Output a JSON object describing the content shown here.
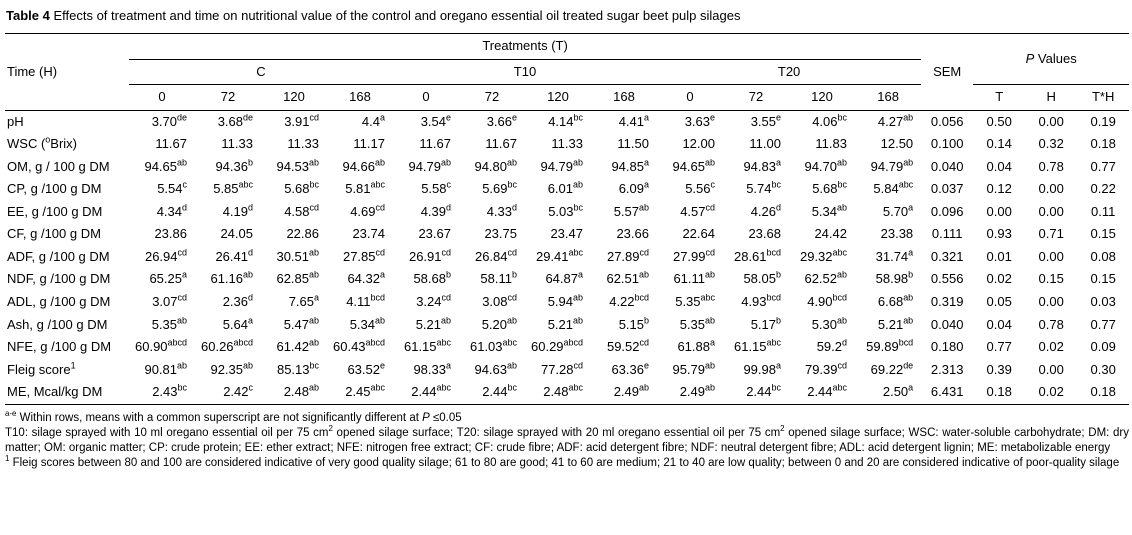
{
  "title": {
    "label": "Table 4",
    "text": " Effects of treatment and time on nutritional value of the control and oregano essential oil treated sugar beet pulp silages"
  },
  "header": {
    "treatments": "Treatments (T)",
    "time_h": "Time (H)",
    "groups": [
      "C",
      "T10",
      "T20"
    ],
    "times": [
      "0",
      "72",
      "120",
      "168"
    ],
    "sem": "SEM",
    "p_values": "*P* Values",
    "p_cols": [
      "T",
      "H",
      "T*H"
    ]
  },
  "rows": [
    {
      "label": "pH",
      "values": [
        "3.70^{de}",
        "3.68^{de}",
        "3.91^{cd}",
        "4.4^{a}",
        "3.54^{e}",
        "3.66^{e}",
        "4.14^{bc}",
        "4.41^{a}",
        "3.63^{e}",
        "3.55^{e}",
        "4.06^{bc}",
        "4.27^{ab}"
      ],
      "sem": "0.056",
      "p": [
        "0.50",
        "0.00",
        "0.19"
      ]
    },
    {
      "label": "WSC (^{o}Brix)",
      "values": [
        "11.67",
        "11.33",
        "11.33",
        "11.17",
        "11.67",
        "11.67",
        "11.33",
        "11.50",
        "12.00",
        "11.00",
        "11.83",
        "12.50"
      ],
      "sem": "0.100",
      "p": [
        "0.14",
        "0.32",
        "0.18"
      ]
    },
    {
      "label": "OM, g / 100 g DM",
      "values": [
        "94.65^{ab}",
        "94.36^{b}",
        "94.53^{ab}",
        "94.66^{ab}",
        "94.79^{ab}",
        "94.80^{ab}",
        "94.79^{ab}",
        "94.85^{a}",
        "94.65^{ab}",
        "94.83^{a}",
        "94.70^{ab}",
        "94.79^{ab}"
      ],
      "sem": "0.040",
      "p": [
        "0.04",
        "0.78",
        "0.77"
      ]
    },
    {
      "label": "CP, g /100 g DM",
      "values": [
        "5.54^{c}",
        "5.85^{abc}",
        "5.68^{bc}",
        "5.81^{abc}",
        "5.58^{c}",
        "5.69^{bc}",
        "6.01^{ab}",
        "6.09^{a}",
        "5.56^{c}",
        "5.74^{bc}",
        "5.68^{bc}",
        "5.84^{abc}"
      ],
      "sem": "0.037",
      "p": [
        "0.12",
        "0.00",
        "0.22"
      ]
    },
    {
      "label": "EE, g /100 g DM",
      "values": [
        "4.34^{d}",
        "4.19^{d}",
        "4.58^{cd}",
        "4.69^{cd}",
        "4.39^{d}",
        "4.33^{d}",
        "5.03^{bc}",
        "5.57^{ab}",
        "4.57^{cd}",
        "4.26^{d}",
        "5.34^{ab}",
        "5.70^{a}"
      ],
      "sem": "0.096",
      "p": [
        "0.00",
        "0.00",
        "0.11"
      ]
    },
    {
      "label": "CF, g /100 g DM",
      "values": [
        "23.86",
        "24.05",
        "22.86",
        "23.74",
        "23.67",
        "23.75",
        "23.47",
        "23.66",
        "22.64",
        "23.68",
        "24.42",
        "23.38"
      ],
      "sem": "0.111",
      "p": [
        "0.93",
        "0.71",
        "0.15"
      ]
    },
    {
      "label": "ADF, g /100 g DM",
      "values": [
        "26.94^{cd}",
        "26.41^{d}",
        "30.51^{ab}",
        "27.85^{cd}",
        "26.91^{cd}",
        "26.84^{cd}",
        "29.41^{abc}",
        "27.89^{cd}",
        "27.99^{cd}",
        "28.61^{bcd}",
        "29.32^{abc}",
        "31.74^{a}"
      ],
      "sem": "0.321",
      "p": [
        "0.01",
        "0.00",
        "0.08"
      ]
    },
    {
      "label": "NDF, g /100 g DM",
      "values": [
        "65.25^{a}",
        "61.16^{ab}",
        "62.85^{ab}",
        "64.32^{a}",
        "58.68^{b}",
        "58.11^{b}",
        "64.87^{a}",
        "62.51^{ab}",
        "61.11^{ab}",
        "58.05^{b}",
        "62.52^{ab}",
        "58.98^{b}"
      ],
      "sem": "0.556",
      "p": [
        "0.02",
        "0.15",
        "0.15"
      ]
    },
    {
      "label": "ADL, g /100 g DM",
      "values": [
        "3.07^{cd}",
        "2.36^{d}",
        "7.65^{a}",
        "4.11^{bcd}",
        "3.24^{cd}",
        "3.08^{cd}",
        "5.94^{ab}",
        "4.22^{bcd}",
        "5.35^{abc}",
        "4.93^{bcd}",
        "4.90^{bcd}",
        "6.68^{ab}"
      ],
      "sem": "0.319",
      "p": [
        "0.05",
        "0.00",
        "0.03"
      ]
    },
    {
      "label": "Ash, g /100 g DM",
      "values": [
        "5.35^{ab}",
        "5.64^{a}",
        "5.47^{ab}",
        "5.34^{ab}",
        "5.21^{ab}",
        "5.20^{ab}",
        "5.21^{ab}",
        "5.15^{b}",
        "5.35^{ab}",
        "5.17^{b}",
        "5.30^{ab}",
        "5.21^{ab}"
      ],
      "sem": "0.040",
      "p": [
        "0.04",
        "0.78",
        "0.77"
      ]
    },
    {
      "label": "NFE, g /100 g DM",
      "values": [
        "60.90^{abcd}",
        "60.26^{abcd}",
        "61.42^{ab}",
        "60.43^{abcd}",
        "61.15^{abc}",
        "61.03^{abc}",
        "60.29^{abcd}",
        "59.52^{cd}",
        "61.88^{a}",
        "61.15^{abc}",
        "59.2^{d}",
        "59.89^{bcd}"
      ],
      "sem": "0.180",
      "p": [
        "0.77",
        "0.02",
        "0.09"
      ]
    },
    {
      "label": "Fleig score^{1}",
      "values": [
        "90.81^{ab}",
        "92.35^{ab}",
        "85.13^{bc}",
        "63.52^{e}",
        "98.33^{a}",
        "94.63^{ab}",
        "77.28^{cd}",
        "63.36^{e}",
        "95.79^{ab}",
        "99.98^{a}",
        "79.39^{cd}",
        "69.22^{de}"
      ],
      "sem": "2.313",
      "p": [
        "0.39",
        "0.00",
        "0.30"
      ]
    },
    {
      "label": "ME, Mcal/kg DM",
      "values": [
        "2.43^{bc}",
        "2.42^{c}",
        "2.48^{ab}",
        "2.45^{abc}",
        "2.44^{abc}",
        "2.44^{bc}",
        "2.48^{abc}",
        "2.49^{ab}",
        "2.49^{ab}",
        "2.44^{bc}",
        "2.44^{abc}",
        "2.50^{a}"
      ],
      "sem": "6.431",
      "p": [
        "0.18",
        "0.02",
        "0.18"
      ]
    }
  ],
  "footnotes": [
    "^{a-e} Within rows, means with a common superscript are not significantly different at *P* ≤0.05",
    "T10: silage sprayed with 10 ml oregano essential oil per 75 cm^{2} opened silage surface; T20: silage sprayed with 20 ml oregano essential oil per 75 cm^{2} opened silage surface; WSC: water-soluble carbohydrate; DM: dry matter; OM: organic matter; CP: crude protein; EE: ether extract; NFE: nitrogen free extract; CF: crude fibre; ADF: acid detergent fibre; NDF: neutral detergent fibre; ADL: acid detergent lignin; ME: metabolizable energy",
    "^{1} Fleig scores between 80 and 100 are considered indicative of very good quality silage; 61 to 80 are good; 41 to 60 are medium; 21 to 40 are low quality; between 0 and 20 are considered indicative of poor-quality silage"
  ]
}
